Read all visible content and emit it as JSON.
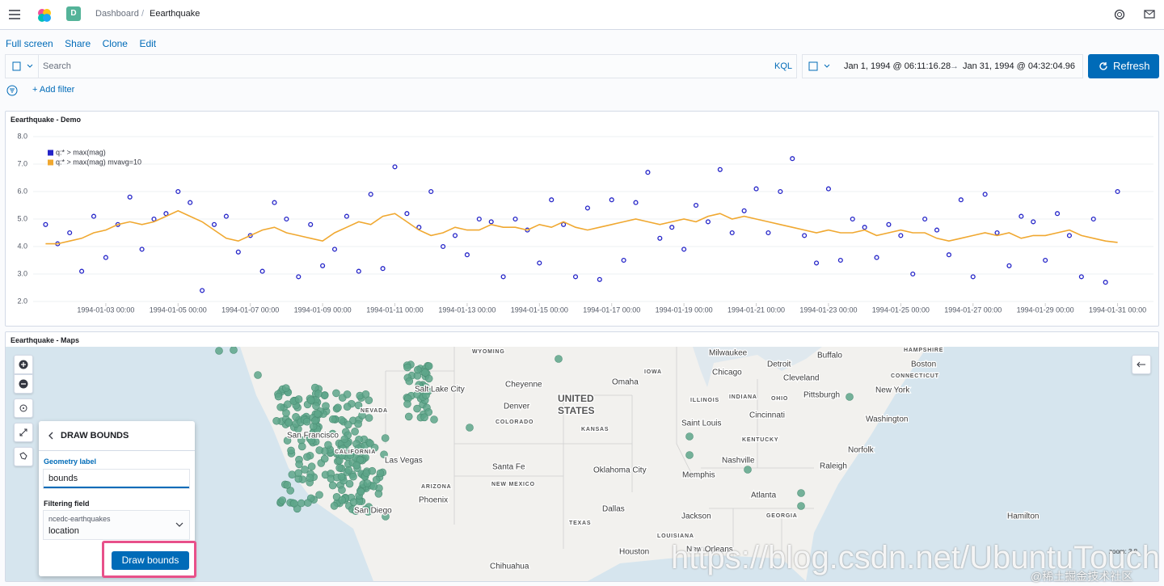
{
  "header": {
    "breadcrumb": [
      "Dashboard",
      "Eearthquake"
    ],
    "space_badge": "D"
  },
  "menu": [
    "Full screen",
    "Share",
    "Clone",
    "Edit"
  ],
  "query": {
    "placeholder": "Search",
    "language": "KQL",
    "start": "Jan 1, 1994 @ 06:11:16.28",
    "arrow": "→",
    "end": "Jan 31, 1994 @ 04:32:04.96",
    "refresh": "Refresh",
    "add_filter": "+ Add filter"
  },
  "chart_panel": {
    "title": "Eearthquake - Demo"
  },
  "chart_data": {
    "type": "scatter",
    "x": [
      "1994-01-01 08:00",
      "1994-01-01 16:00",
      "1994-01-02 00:00",
      "1994-01-02 08:00",
      "1994-01-02 16:00",
      "1994-01-03 00:00",
      "1994-01-03 08:00",
      "1994-01-03 16:00",
      "1994-01-04 00:00",
      "1994-01-04 08:00",
      "1994-01-04 16:00",
      "1994-01-05 00:00",
      "1994-01-05 08:00",
      "1994-01-05 16:00",
      "1994-01-06 00:00",
      "1994-01-06 08:00",
      "1994-01-06 16:00",
      "1994-01-07 00:00",
      "1994-01-07 08:00",
      "1994-01-07 16:00",
      "1994-01-08 00:00",
      "1994-01-08 08:00",
      "1994-01-08 16:00",
      "1994-01-09 00:00",
      "1994-01-09 08:00",
      "1994-01-09 16:00",
      "1994-01-10 00:00",
      "1994-01-10 08:00",
      "1994-01-10 16:00",
      "1994-01-11 00:00",
      "1994-01-11 08:00",
      "1994-01-11 16:00",
      "1994-01-12 00:00",
      "1994-01-12 08:00",
      "1994-01-12 16:00",
      "1994-01-13 00:00",
      "1994-01-13 08:00",
      "1994-01-13 16:00",
      "1994-01-14 00:00",
      "1994-01-14 08:00",
      "1994-01-14 16:00",
      "1994-01-15 00:00",
      "1994-01-15 08:00",
      "1994-01-15 16:00",
      "1994-01-16 00:00",
      "1994-01-16 08:00",
      "1994-01-16 16:00",
      "1994-01-17 00:00",
      "1994-01-17 08:00",
      "1994-01-17 16:00",
      "1994-01-18 00:00",
      "1994-01-18 08:00",
      "1994-01-18 16:00",
      "1994-01-19 00:00",
      "1994-01-19 08:00",
      "1994-01-19 16:00",
      "1994-01-20 00:00",
      "1994-01-20 08:00",
      "1994-01-20 16:00",
      "1994-01-21 00:00",
      "1994-01-21 08:00",
      "1994-01-21 16:00",
      "1994-01-22 00:00",
      "1994-01-22 08:00",
      "1994-01-22 16:00",
      "1994-01-23 00:00",
      "1994-01-23 08:00",
      "1994-01-23 16:00",
      "1994-01-24 00:00",
      "1994-01-24 08:00",
      "1994-01-24 16:00",
      "1994-01-25 00:00",
      "1994-01-25 08:00",
      "1994-01-25 16:00",
      "1994-01-26 00:00",
      "1994-01-26 08:00",
      "1994-01-26 16:00",
      "1994-01-27 00:00",
      "1994-01-27 08:00",
      "1994-01-27 16:00",
      "1994-01-28 00:00",
      "1994-01-28 08:00",
      "1994-01-28 16:00",
      "1994-01-29 00:00",
      "1994-01-29 08:00",
      "1994-01-29 16:00",
      "1994-01-30 00:00",
      "1994-01-30 08:00",
      "1994-01-30 16:00",
      "1994-01-31 00:00"
    ],
    "series": [
      {
        "name": "q:* > max(mag)",
        "type": "scatter",
        "color": "#2424c8",
        "values": [
          4.8,
          4.1,
          4.5,
          3.1,
          5.1,
          3.6,
          4.8,
          5.8,
          3.9,
          5.0,
          5.2,
          6.0,
          5.6,
          2.4,
          4.8,
          5.1,
          3.8,
          4.4,
          3.1,
          5.6,
          5.0,
          2.9,
          4.8,
          3.3,
          3.9,
          5.1,
          3.1,
          5.9,
          3.2,
          6.9,
          5.2,
          4.7,
          6.0,
          4.0,
          4.4,
          3.7,
          5.0,
          4.9,
          2.9,
          5.0,
          4.6,
          3.4,
          5.7,
          4.8,
          2.9,
          5.4,
          2.8,
          5.7,
          3.5,
          5.6,
          6.7,
          4.3,
          4.7,
          3.9,
          5.5,
          4.9,
          6.8,
          4.5,
          5.3,
          6.1,
          4.5,
          6.0,
          7.2,
          4.4,
          3.4,
          6.1,
          3.5,
          5.0,
          4.7,
          3.6,
          4.8,
          4.4,
          3.0,
          5.0,
          4.6,
          3.7,
          5.7,
          2.9,
          5.9,
          4.5,
          3.3,
          5.1,
          4.9,
          3.5,
          5.2,
          4.4,
          2.9,
          5.0,
          2.7,
          6.0
        ]
      },
      {
        "name": "q:* > max(mag) mvavg=10",
        "type": "line",
        "color": "#f0a830",
        "values": [
          4.1,
          4.1,
          4.2,
          4.3,
          4.5,
          4.6,
          4.8,
          4.9,
          4.8,
          4.9,
          5.1,
          5.3,
          5.1,
          4.9,
          4.6,
          4.3,
          4.2,
          4.4,
          4.6,
          4.7,
          4.5,
          4.4,
          4.3,
          4.2,
          4.5,
          4.7,
          4.9,
          4.8,
          5.1,
          5.2,
          4.9,
          4.6,
          4.4,
          4.5,
          4.7,
          4.6,
          4.6,
          4.8,
          4.7,
          4.7,
          4.6,
          4.8,
          4.7,
          4.9,
          4.7,
          4.6,
          4.7,
          4.8,
          4.9,
          5.0,
          4.9,
          4.8,
          4.9,
          5.0,
          4.9,
          5.1,
          5.2,
          5.0,
          5.1,
          5.0,
          4.9,
          4.8,
          4.7,
          4.6,
          4.5,
          4.6,
          4.5,
          4.5,
          4.6,
          4.4,
          4.5,
          4.6,
          4.5,
          4.5,
          4.3,
          4.2,
          4.3,
          4.4,
          4.5,
          4.4,
          4.5,
          4.3,
          4.4,
          4.4,
          4.5,
          4.6,
          4.4,
          4.3,
          4.2,
          4.15
        ]
      }
    ],
    "xlim": [
      "1994-01-01 06:11",
      "1994-01-31 04:32"
    ],
    "xticks": [
      "1994-01-03 00:00",
      "1994-01-05 00:00",
      "1994-01-07 00:00",
      "1994-01-09 00:00",
      "1994-01-11 00:00",
      "1994-01-13 00:00",
      "1994-01-15 00:00",
      "1994-01-17 00:00",
      "1994-01-19 00:00",
      "1994-01-21 00:00",
      "1994-01-23 00:00",
      "1994-01-25 00:00",
      "1994-01-27 00:00",
      "1994-01-29 00:00",
      "1994-01-31 00:00"
    ],
    "ylim": [
      2,
      8
    ],
    "yticks": [
      {
        "value": 2,
        "label": "2.0"
      },
      {
        "value": 3,
        "label": "3.0"
      },
      {
        "value": 4,
        "label": "4.0"
      },
      {
        "value": 5,
        "label": "5.0"
      },
      {
        "value": 6,
        "label": "6.0"
      },
      {
        "value": 7,
        "label": "7.0"
      },
      {
        "value": 8,
        "label": "8.0"
      }
    ],
    "grid": true,
    "legend": "top-left"
  },
  "map_panel": {
    "title": "Eearthquake - Maps",
    "zoom": "zoom: 3.8",
    "labels": [
      "WYOMING",
      "Milwaukee",
      "Buffalo",
      "HAMPSHIRE",
      "Boston",
      "IOWA",
      "Chicago",
      "Detroit",
      "Cleveland",
      "CONNECTICUT",
      "Cheyenne",
      "Omaha",
      "Salt Lake City",
      "UNITED",
      "STATES",
      "ILLINOIS",
      "INDIANA",
      "OHIO",
      "Pittsburgh",
      "New York",
      "Denver",
      "NEVADA",
      "COLORADO",
      "KANSAS",
      "Cincinnati",
      "Washington",
      "San Francisco",
      "Saint Louis",
      "KENTUCKY",
      "CALIFORNIA",
      "Las Vegas",
      "Nashville",
      "Norfolk",
      "Santa Fe",
      "Oklahoma City",
      "Raleigh",
      "Memphis",
      "ARIZONA",
      "NEW MEXICO",
      "Phoenix",
      "Atlanta",
      "San Diego",
      "Dallas",
      "GEORGIA",
      "Jackson",
      "Hamilton",
      "TEXAS",
      "LOUISIANA",
      "Houston",
      "New Orleans",
      "Chihuahua"
    ]
  },
  "draw_panel": {
    "title": "DRAW BOUNDS",
    "geometry_label": "Geometry label",
    "input": "bounds",
    "filtering_field": "Filtering field",
    "index": "ncedc-earthquakes",
    "field": "location",
    "button": "Draw bounds"
  },
  "watermark": "https://blog.csdn.net/UbuntuTouch",
  "watermark2": "@稀土掘金技术社区"
}
